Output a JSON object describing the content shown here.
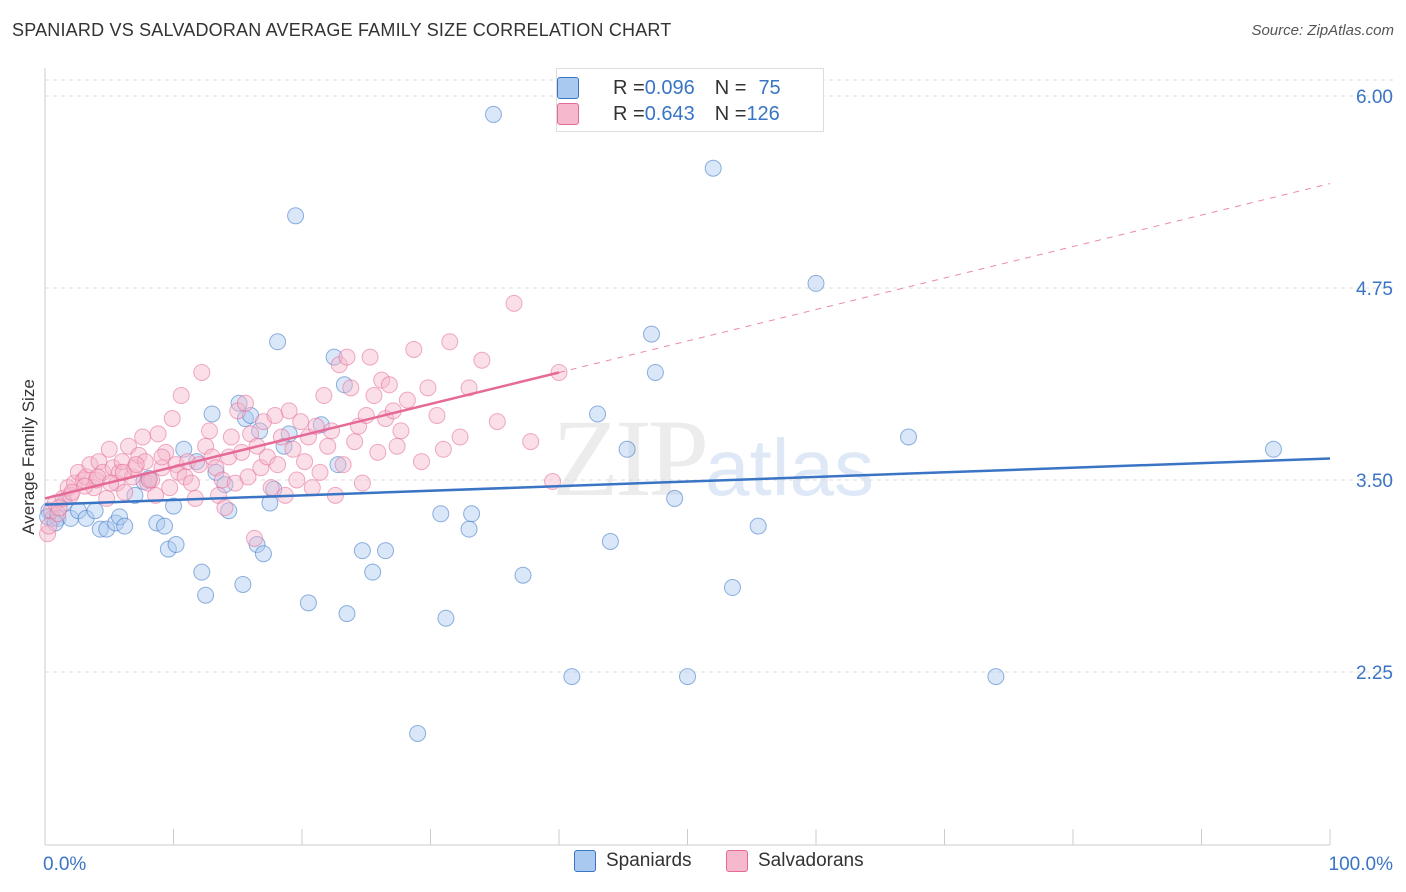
{
  "title": "SPANIARD VS SALVADORAN AVERAGE FAMILY SIZE CORRELATION CHART",
  "source": "Source: ZipAtlas.com",
  "watermark": {
    "zip": "ZIP",
    "atlas": "atlas"
  },
  "legend": {
    "rows": [
      {
        "r_label": "R = ",
        "r_value": "0.096",
        "n_label": "N = ",
        "n_value": "75",
        "color": "#aac9f0"
      },
      {
        "r_label": "R = ",
        "r_value": "0.643",
        "n_label": "N = ",
        "n_value": "126",
        "color": "#f5b8cc"
      }
    ]
  },
  "bottom_legend": [
    "Spaniards",
    "Salvadorans"
  ],
  "chart_data": {
    "type": "scatter",
    "title": "SPANIARD VS SALVADORAN AVERAGE FAMILY SIZE CORRELATION CHART",
    "xlabel": "",
    "ylabel": "Average Family Size",
    "xlim": [
      0,
      100
    ],
    "ylim": [
      1.25,
      6.25
    ],
    "x_tick_labels": [
      "0.0%",
      "100.0%"
    ],
    "y_ticks": [
      2.25,
      3.5,
      4.75,
      6.0
    ],
    "y_tick_labels": [
      "2.25",
      "3.50",
      "4.75",
      "6.00"
    ],
    "grid": true,
    "legend_position": "top-center",
    "series": [
      {
        "name": "Spaniards",
        "color": "#3a74c4",
        "fill": "#aac9f0",
        "trend": {
          "x": [
            0,
            100
          ],
          "y": [
            3.34,
            3.64
          ]
        },
        "points": [
          [
            0.3,
            3.3
          ],
          [
            0.6,
            3.25
          ],
          [
            1.0,
            3.25
          ],
          [
            1.5,
            3.35
          ],
          [
            2.0,
            3.25
          ],
          [
            2.6,
            3.3
          ],
          [
            3.2,
            3.25
          ],
          [
            3.9,
            3.3
          ],
          [
            4.3,
            3.18
          ],
          [
            4.8,
            3.18
          ],
          [
            5.5,
            3.22
          ],
          [
            5.8,
            3.26
          ],
          [
            6.2,
            3.2
          ],
          [
            7.0,
            3.4
          ],
          [
            7.7,
            3.49
          ],
          [
            8.1,
            3.51
          ],
          [
            8.7,
            3.22
          ],
          [
            9.3,
            3.2
          ],
          [
            9.6,
            3.05
          ],
          [
            10.0,
            3.33
          ],
          [
            10.2,
            3.08
          ],
          [
            10.8,
            3.7
          ],
          [
            11.8,
            3.62
          ],
          [
            12.2,
            2.9
          ],
          [
            12.5,
            2.75
          ],
          [
            13.0,
            3.93
          ],
          [
            13.3,
            3.55
          ],
          [
            14.0,
            3.47
          ],
          [
            14.3,
            3.3
          ],
          [
            15.1,
            4.0
          ],
          [
            15.4,
            2.82
          ],
          [
            15.6,
            3.9
          ],
          [
            16.0,
            3.92
          ],
          [
            16.5,
            3.08
          ],
          [
            16.7,
            3.82
          ],
          [
            17.0,
            3.02
          ],
          [
            17.5,
            3.35
          ],
          [
            17.8,
            3.44
          ],
          [
            18.1,
            4.4
          ],
          [
            18.6,
            3.72
          ],
          [
            19.0,
            3.8
          ],
          [
            19.5,
            5.22
          ],
          [
            20.5,
            2.7
          ],
          [
            21.5,
            3.86
          ],
          [
            22.5,
            4.3
          ],
          [
            22.8,
            3.6
          ],
          [
            23.3,
            4.12
          ],
          [
            23.5,
            2.63
          ],
          [
            24.7,
            3.04
          ],
          [
            25.5,
            2.9
          ],
          [
            26.5,
            3.04
          ],
          [
            29.0,
            1.85
          ],
          [
            30.8,
            3.28
          ],
          [
            31.2,
            2.6
          ],
          [
            33.2,
            3.28
          ],
          [
            33.0,
            3.18
          ],
          [
            34.9,
            5.88
          ],
          [
            37.2,
            2.88
          ],
          [
            41.0,
            2.22
          ],
          [
            43.0,
            3.93
          ],
          [
            44.0,
            3.1
          ],
          [
            45.3,
            3.7
          ],
          [
            47.2,
            4.45
          ],
          [
            47.5,
            4.2
          ],
          [
            49.0,
            3.38
          ],
          [
            50.0,
            2.22
          ],
          [
            52.0,
            5.53
          ],
          [
            53.5,
            2.8
          ],
          [
            55.5,
            3.2
          ],
          [
            60.0,
            4.78
          ],
          [
            67.2,
            3.78
          ],
          [
            74.0,
            2.22
          ],
          [
            95.6,
            3.7
          ],
          [
            0.2,
            3.26
          ],
          [
            0.8,
            3.22
          ]
        ]
      },
      {
        "name": "Salvadorans",
        "color": "#e66a97",
        "fill": "#f5b8cc",
        "trend": {
          "x": [
            0,
            40
          ],
          "y": [
            3.38,
            4.2
          ]
        },
        "trend_dashed": {
          "x": [
            40,
            100
          ],
          "y": [
            4.2,
            5.43
          ]
        },
        "points": [
          [
            0.2,
            3.15
          ],
          [
            0.5,
            3.3
          ],
          [
            0.8,
            3.35
          ],
          [
            1.0,
            3.28
          ],
          [
            1.4,
            3.38
          ],
          [
            1.8,
            3.45
          ],
          [
            2.0,
            3.4
          ],
          [
            2.3,
            3.48
          ],
          [
            2.6,
            3.55
          ],
          [
            3.0,
            3.5
          ],
          [
            3.2,
            3.52
          ],
          [
            3.5,
            3.6
          ],
          [
            3.8,
            3.45
          ],
          [
            4.0,
            3.5
          ],
          [
            4.2,
            3.62
          ],
          [
            4.5,
            3.55
          ],
          [
            4.8,
            3.38
          ],
          [
            5.0,
            3.7
          ],
          [
            5.3,
            3.58
          ],
          [
            5.6,
            3.48
          ],
          [
            5.8,
            3.55
          ],
          [
            6.0,
            3.62
          ],
          [
            6.2,
            3.42
          ],
          [
            6.5,
            3.72
          ],
          [
            6.8,
            3.52
          ],
          [
            7.0,
            3.58
          ],
          [
            7.3,
            3.66
          ],
          [
            7.6,
            3.78
          ],
          [
            7.8,
            3.62
          ],
          [
            8.0,
            3.48
          ],
          [
            8.3,
            3.5
          ],
          [
            8.6,
            3.4
          ],
          [
            8.8,
            3.8
          ],
          [
            9.1,
            3.58
          ],
          [
            9.4,
            3.68
          ],
          [
            9.7,
            3.45
          ],
          [
            9.9,
            3.9
          ],
          [
            10.2,
            3.6
          ],
          [
            10.4,
            3.55
          ],
          [
            10.6,
            4.05
          ],
          [
            10.9,
            3.52
          ],
          [
            11.1,
            3.62
          ],
          [
            11.4,
            3.48
          ],
          [
            11.7,
            3.38
          ],
          [
            12.0,
            3.6
          ],
          [
            12.2,
            4.2
          ],
          [
            12.5,
            3.72
          ],
          [
            12.8,
            3.82
          ],
          [
            13.0,
            3.65
          ],
          [
            13.3,
            3.58
          ],
          [
            13.5,
            3.4
          ],
          [
            13.8,
            3.5
          ],
          [
            14.0,
            3.32
          ],
          [
            14.3,
            3.65
          ],
          [
            14.5,
            3.78
          ],
          [
            14.8,
            3.48
          ],
          [
            15.0,
            3.95
          ],
          [
            15.3,
            3.68
          ],
          [
            15.6,
            4.0
          ],
          [
            15.8,
            3.52
          ],
          [
            16.0,
            3.8
          ],
          [
            16.3,
            3.12
          ],
          [
            16.5,
            3.72
          ],
          [
            16.8,
            3.58
          ],
          [
            17.0,
            3.88
          ],
          [
            17.3,
            3.65
          ],
          [
            17.6,
            3.45
          ],
          [
            17.9,
            3.92
          ],
          [
            18.1,
            3.6
          ],
          [
            18.4,
            3.78
          ],
          [
            18.7,
            3.4
          ],
          [
            19.0,
            3.95
          ],
          [
            19.3,
            3.7
          ],
          [
            19.6,
            3.5
          ],
          [
            19.9,
            3.88
          ],
          [
            20.2,
            3.62
          ],
          [
            20.5,
            3.78
          ],
          [
            20.8,
            3.45
          ],
          [
            21.1,
            3.85
          ],
          [
            21.4,
            3.55
          ],
          [
            21.7,
            4.05
          ],
          [
            22.0,
            3.72
          ],
          [
            22.3,
            3.82
          ],
          [
            22.6,
            3.4
          ],
          [
            22.9,
            4.25
          ],
          [
            23.2,
            3.6
          ],
          [
            23.5,
            4.3
          ],
          [
            23.8,
            4.1
          ],
          [
            24.1,
            3.75
          ],
          [
            24.4,
            3.85
          ],
          [
            24.7,
            3.48
          ],
          [
            25.0,
            3.92
          ],
          [
            25.3,
            4.3
          ],
          [
            25.6,
            4.05
          ],
          [
            25.9,
            3.68
          ],
          [
            26.2,
            4.15
          ],
          [
            26.5,
            3.9
          ],
          [
            26.8,
            4.12
          ],
          [
            27.1,
            3.95
          ],
          [
            27.4,
            3.72
          ],
          [
            27.7,
            3.82
          ],
          [
            28.2,
            4.02
          ],
          [
            28.7,
            4.35
          ],
          [
            29.3,
            3.62
          ],
          [
            29.8,
            4.1
          ],
          [
            30.5,
            3.92
          ],
          [
            31.0,
            3.7
          ],
          [
            31.5,
            4.4
          ],
          [
            32.3,
            3.78
          ],
          [
            33.0,
            4.1
          ],
          [
            34.0,
            4.28
          ],
          [
            35.2,
            3.88
          ],
          [
            36.5,
            4.65
          ],
          [
            37.8,
            3.75
          ],
          [
            39.5,
            3.49
          ],
          [
            40.0,
            4.2
          ],
          [
            0.3,
            3.2
          ],
          [
            1.1,
            3.32
          ],
          [
            2.1,
            3.42
          ],
          [
            3.1,
            3.46
          ],
          [
            4.1,
            3.52
          ],
          [
            5.1,
            3.48
          ],
          [
            6.1,
            3.55
          ],
          [
            7.1,
            3.6
          ],
          [
            8.1,
            3.5
          ],
          [
            9.1,
            3.65
          ]
        ]
      }
    ]
  }
}
